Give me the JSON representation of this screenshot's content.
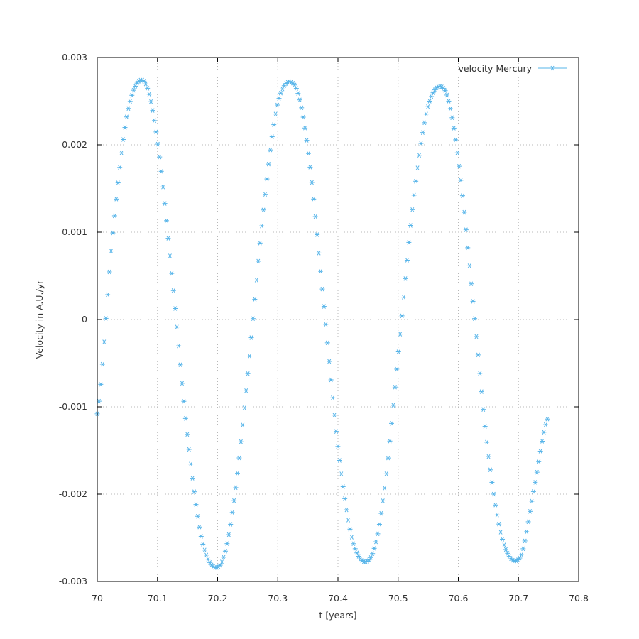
{
  "chart_data": {
    "type": "line",
    "title": "",
    "xlabel": "t [years]",
    "ylabel": "Velocity in A.U./yr",
    "xlim": [
      70,
      70.8
    ],
    "ylim": [
      -0.003,
      0.003
    ],
    "x_ticks": [
      "70",
      "70.1",
      "70.2",
      "70.3",
      "70.4",
      "70.5",
      "70.6",
      "70.7",
      "70.8"
    ],
    "y_ticks": [
      "-0.003",
      "-0.002",
      "-0.001",
      "0",
      "0.001",
      "0.002",
      "0.003"
    ],
    "grid": true,
    "legend_position": "top-right",
    "marker": "asterisk",
    "series": [
      {
        "name": "velocity Mercury",
        "color": "#56b4e9",
        "x": [
          70.0,
          70.025,
          70.05,
          70.0775,
          70.1,
          70.125,
          70.15,
          70.175,
          70.2036,
          70.225,
          70.25,
          70.275,
          70.3,
          70.3285,
          70.35,
          70.375,
          70.4,
          70.425,
          70.4534,
          70.475,
          70.5,
          70.525,
          70.55,
          70.5783,
          70.6,
          70.625,
          70.65,
          70.675,
          70.7032,
          70.725,
          70.748
        ],
        "values": [
          -0.00108,
          0.00093,
          0.00236,
          0.00273,
          0.00204,
          0.00044,
          -0.00134,
          -0.00256,
          -0.00282,
          -0.00218,
          -0.00064,
          0.00118,
          0.00248,
          0.00268,
          0.00195,
          0.00028,
          -0.00146,
          -0.00255,
          -0.00274,
          -0.00206,
          -0.00041,
          0.00134,
          0.00245,
          0.00262,
          0.00182,
          0.00016,
          -0.00156,
          -0.00256,
          -0.00272,
          -0.00197,
          -0.00114
        ]
      }
    ]
  }
}
